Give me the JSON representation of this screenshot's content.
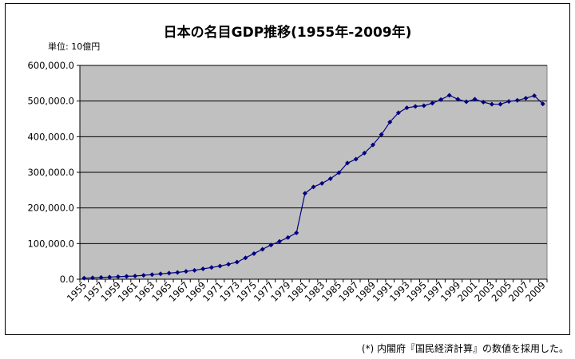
{
  "title": "日本の名目GDP推移(1955年-2009年)",
  "unit_label": "単位: 10億円",
  "note": "(*) 内閣府『国民経済計算』の数値を採用した。",
  "colors": {
    "plot_bg": "#c0c0c0",
    "series": "#000080",
    "grid": "#000000"
  },
  "chart_data": {
    "type": "line",
    "title": "日本の名目GDP推移(1955年-2009年)",
    "xlabel": "",
    "ylabel": "単位: 10億円",
    "ylim": [
      0,
      600000
    ],
    "yticks": [
      0,
      100000,
      200000,
      300000,
      400000,
      500000,
      600000
    ],
    "ytick_labels": [
      "0.0",
      "100,000.0",
      "200,000.0",
      "300,000.0",
      "400,000.0",
      "500,000.0",
      "600,000.0"
    ],
    "xtick_labels": [
      "1955",
      "1957",
      "1959",
      "1961",
      "1963",
      "1965",
      "1967",
      "1969",
      "1971",
      "1973",
      "1975",
      "1977",
      "1979",
      "1981",
      "1983",
      "1985",
      "1987",
      "1989",
      "1991",
      "1993",
      "1995",
      "1997",
      "1999",
      "2001",
      "2003",
      "2005",
      "2007",
      "2009"
    ],
    "grid": true,
    "legend": "none",
    "marker": "diamond",
    "series": [
      {
        "x": [
          1955,
          1956,
          1957,
          1958,
          1959,
          1960,
          1961,
          1962,
          1963,
          1964,
          1965,
          1966,
          1967,
          1968,
          1969,
          1970,
          1971,
          1972,
          1973,
          1974,
          1975,
          1976,
          1977,
          1978,
          1979,
          1980,
          1981,
          1982,
          1983,
          1984,
          1985,
          1986,
          1987,
          1988,
          1989,
          1990,
          1991,
          1992,
          1993,
          1994,
          1995,
          1996,
          1997,
          1998,
          1999,
          2000,
          2001,
          2002,
          2003,
          2004,
          2005,
          2006,
          2007,
          2008,
          2009
        ],
        "values": [
          3000,
          4000,
          5000,
          6000,
          7000,
          8000,
          9000,
          11000,
          13000,
          15000,
          17000,
          19000,
          22000,
          25000,
          29000,
          33000,
          37000,
          42000,
          48000,
          60000,
          72000,
          84000,
          96000,
          106000,
          117000,
          130000,
          241000,
          259000,
          269000,
          282000,
          299000,
          326000,
          337000,
          354000,
          377000,
          406000,
          441000,
          467000,
          481000,
          485000,
          487000,
          494000,
          504000,
          516000,
          505000,
          498000,
          505000,
          497000,
          491000,
          491000,
          499000,
          502000,
          508000,
          515000,
          492000
        ]
      }
    ]
  }
}
